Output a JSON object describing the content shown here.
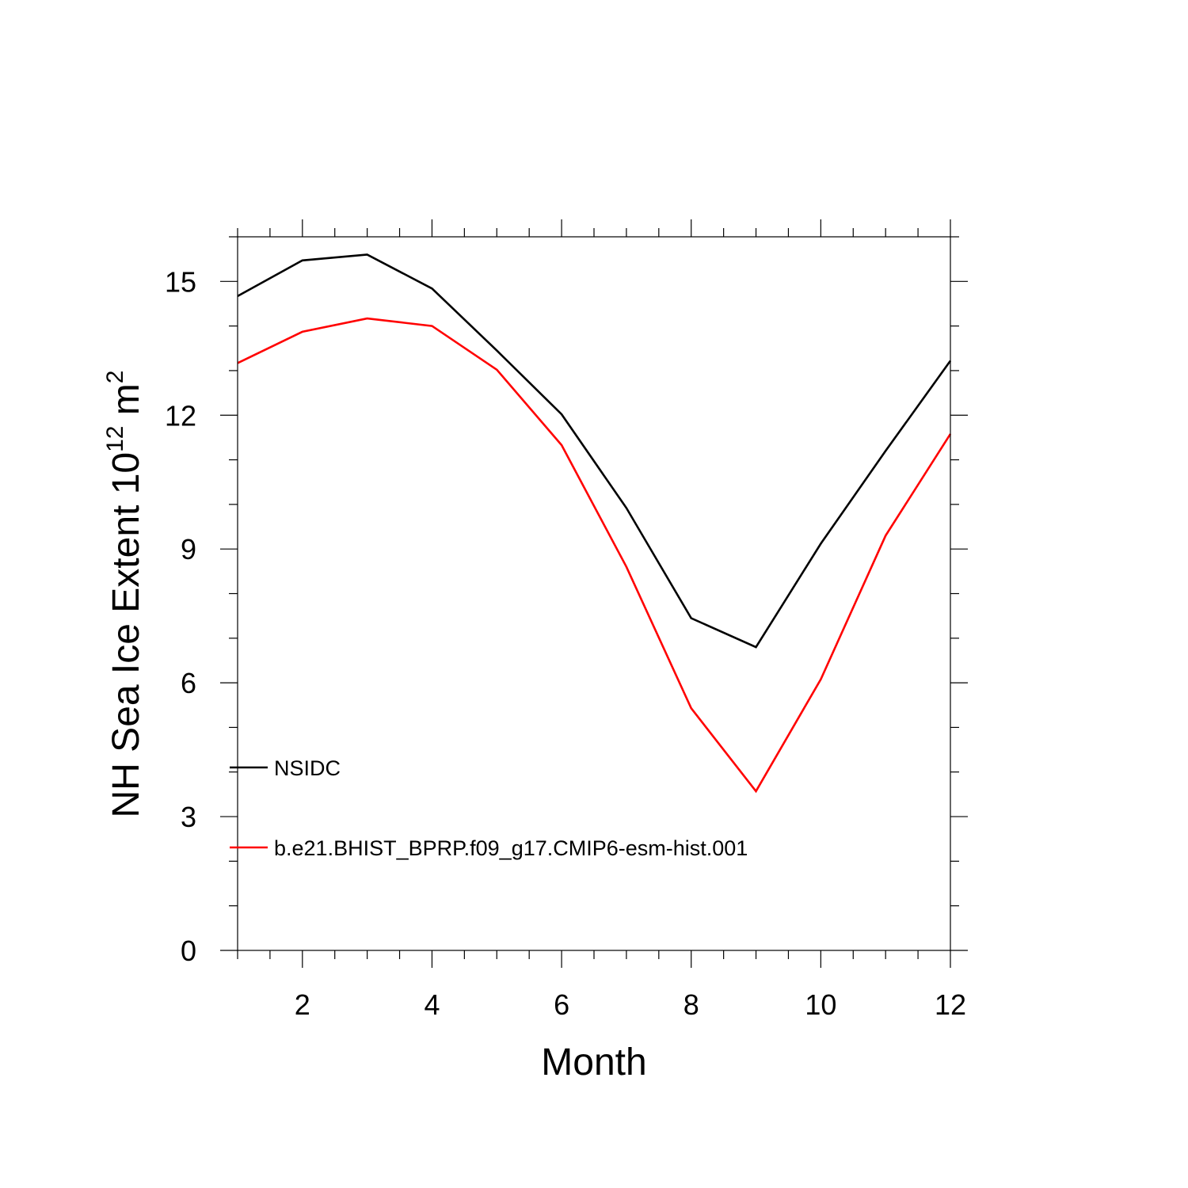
{
  "chart_data": {
    "type": "line",
    "title": "",
    "xlabel": "Month",
    "ylabel": {
      "main": "NH Sea Ice Extent 10",
      "sup_exp": "12",
      "unit": " m",
      "sup_unit": "2"
    },
    "xlim": [
      1,
      12
    ],
    "ylim": [
      0,
      16
    ],
    "xticks": [
      2,
      4,
      6,
      8,
      10,
      12
    ],
    "yticks": [
      0,
      3,
      6,
      9,
      12,
      15
    ],
    "grid": false,
    "legend_position": "left-middle",
    "x": [
      1,
      2,
      3,
      4,
      5,
      6,
      7,
      8,
      9,
      10,
      11,
      12
    ],
    "series": [
      {
        "name": "NSIDC",
        "color": "#000000",
        "values": [
          14.67,
          15.47,
          15.6,
          14.84,
          13.45,
          12.02,
          9.92,
          7.45,
          6.8,
          9.12,
          11.2,
          13.22
        ]
      },
      {
        "name": "b.e21.BHIST_BPRP.f09_g17.CMIP6-esm-hist.001",
        "color": "#ff0000",
        "values": [
          13.17,
          13.87,
          14.17,
          14.0,
          13.02,
          11.33,
          8.6,
          5.43,
          3.57,
          6.08,
          9.3,
          11.58
        ]
      }
    ]
  }
}
